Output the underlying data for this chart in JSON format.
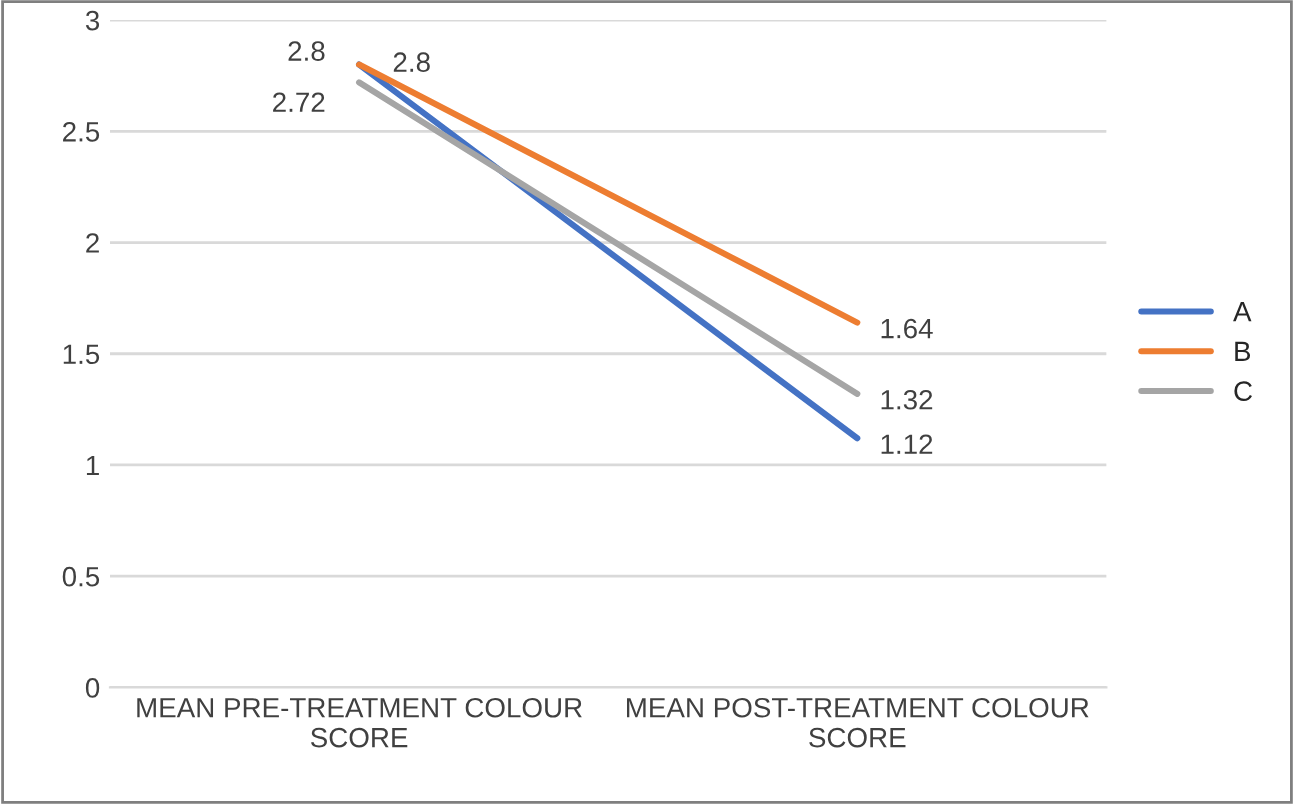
{
  "chart_data": {
    "type": "line",
    "categories": [
      "MEAN PRE-TREATMENT COLOUR SCORE",
      "MEAN POST-TREATMENT COLOUR SCORE"
    ],
    "series": [
      {
        "name": "A",
        "color": "#4472c4",
        "values": [
          2.8,
          1.12
        ]
      },
      {
        "name": "B",
        "color": "#ed7d31",
        "values": [
          2.8,
          1.64
        ]
      },
      {
        "name": "C",
        "color": "#a5a5a5",
        "values": [
          2.72,
          1.32
        ]
      }
    ],
    "ylim": [
      0,
      3
    ],
    "yticks": [
      0,
      0.5,
      1,
      1.5,
      2,
      2.5,
      3
    ],
    "grid": "y",
    "legend": "right",
    "data_labels": true,
    "marker": "none",
    "line_style": "solid"
  }
}
